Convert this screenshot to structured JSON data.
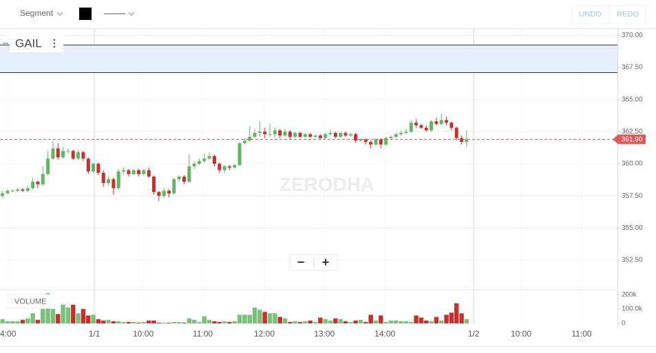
{
  "toolbar": {
    "segment": "Segment",
    "undo": "UNDO",
    "redo": "REDO"
  },
  "zoom": {
    "minus": "−",
    "plus": "+"
  },
  "watermark": "ZERODHA",
  "chart_data": {
    "type": "candlestick",
    "title": "GAIL",
    "xlim": [
      -0.5,
      121.9
    ],
    "xticks": [
      {
        "value": 1.1,
        "label": "4:00"
      },
      {
        "value": 18.2,
        "label": "1/1"
      },
      {
        "value": 27.9,
        "label": "10:00"
      },
      {
        "value": 39.7,
        "label": "11:00"
      },
      {
        "value": 51.9,
        "label": "12:00"
      },
      {
        "value": 63.8,
        "label": "13:00"
      },
      {
        "value": 75.8,
        "label": "14:00"
      },
      {
        "value": 93.4,
        "label": "1/2"
      },
      {
        "value": 102.8,
        "label": "10:00"
      },
      {
        "value": 114.8,
        "label": "11:00"
      }
    ],
    "ylim": [
      350.25,
      370.5
    ],
    "yticks": [
      {
        "value": 370,
        "label": "370.00"
      },
      {
        "value": 367.5,
        "label": "367.50"
      },
      {
        "value": 365,
        "label": "365.00"
      },
      {
        "value": 362.5,
        "label": "362.50"
      },
      {
        "value": 360,
        "label": "360.00"
      },
      {
        "value": 357.5,
        "label": "357.50"
      },
      {
        "value": 355,
        "label": "355.00"
      },
      {
        "value": 352.5,
        "label": "352.50"
      }
    ],
    "up_color": "#5fb760",
    "down_color": "#c9302c",
    "rectangle": {
      "top": 369.25,
      "bottom": 367.1,
      "color": "#e6eefc"
    },
    "last_price": {
      "value": 361.9,
      "label": "361.90",
      "color": "#e05a5a"
    },
    "open": [
      357.5,
      357.7,
      357.9,
      357.9,
      358.0,
      357.9,
      358.1,
      358.6,
      358.4,
      359.2,
      360.4,
      361.2,
      360.5,
      361.0,
      361.0,
      360.4,
      360.9,
      360.4,
      359.4,
      360.0,
      359.3,
      358.5,
      358.8,
      358.1,
      359.4,
      359.5,
      359.2,
      359.5,
      359.2,
      359.5,
      359.0,
      357.8,
      357.5,
      357.9,
      357.7,
      358.8,
      359.0,
      358.6,
      359.8,
      360.0,
      360.2,
      360.4,
      360.6,
      360.0,
      359.5,
      359.8,
      359.7,
      359.9,
      361.6,
      361.8,
      362.1,
      362.4,
      362.5,
      362.3,
      362.3,
      362.6,
      362.2,
      362.5,
      362.1,
      362.4,
      362.1,
      362.3,
      362.1,
      362.2,
      362.0,
      362.3,
      362.4,
      362.1,
      362.4,
      362.2,
      362.3,
      361.8,
      361.9,
      361.7,
      361.5,
      361.9,
      361.5,
      362.0,
      362.1,
      362.3,
      362.4,
      362.5,
      363.2,
      363.0,
      362.8,
      362.6,
      363.3,
      363.1,
      363.4,
      363.2,
      362.8,
      362.0,
      361.7
    ],
    "high": [
      357.9,
      358.0,
      358.0,
      358.1,
      358.1,
      358.3,
      358.9,
      358.7,
      359.8,
      361.0,
      361.8,
      361.6,
      361.3,
      361.2,
      361.1,
      361.1,
      361.0,
      360.5,
      360.1,
      360.1,
      359.5,
      359.0,
      358.9,
      359.6,
      359.7,
      359.6,
      359.6,
      359.6,
      359.6,
      359.7,
      359.1,
      357.9,
      358.1,
      358.0,
      358.9,
      359.1,
      359.1,
      360.7,
      360.2,
      360.4,
      360.8,
      360.9,
      360.7,
      360.1,
      359.9,
      359.9,
      360.0,
      361.7,
      362.0,
      362.9,
      362.7,
      363.3,
      362.8,
      363.1,
      362.8,
      362.7,
      362.7,
      362.6,
      362.5,
      362.5,
      362.4,
      362.4,
      362.3,
      362.3,
      362.4,
      362.7,
      362.5,
      362.5,
      362.5,
      362.4,
      362.4,
      362.0,
      362.0,
      361.8,
      362.0,
      362.0,
      362.1,
      362.2,
      362.4,
      362.6,
      362.7,
      363.4,
      363.5,
      363.1,
      363.0,
      363.4,
      363.6,
      363.9,
      363.7,
      363.3,
      362.9,
      362.2,
      362.6
    ],
    "low": [
      357.3,
      357.6,
      357.8,
      357.8,
      357.8,
      357.8,
      358.0,
      358.1,
      358.3,
      359.1,
      360.3,
      360.3,
      360.4,
      360.8,
      360.3,
      360.3,
      360.2,
      359.2,
      359.3,
      359.1,
      358.2,
      358.3,
      357.6,
      358.0,
      359.2,
      359.0,
      359.1,
      359.0,
      359.1,
      358.9,
      357.6,
      357.1,
      357.3,
      357.4,
      357.6,
      358.6,
      358.4,
      358.5,
      359.6,
      359.9,
      360.1,
      360.3,
      359.8,
      359.3,
      359.3,
      359.5,
      359.6,
      359.8,
      361.5,
      361.7,
      362.0,
      362.1,
      362.0,
      362.1,
      362.0,
      362.0,
      362.1,
      361.9,
      362.0,
      362.0,
      362.0,
      362.0,
      362.0,
      361.9,
      361.9,
      362.2,
      362.0,
      362.0,
      362.1,
      362.1,
      361.6,
      361.7,
      361.5,
      361.2,
      361.4,
      361.2,
      361.4,
      361.9,
      362.0,
      362.2,
      362.3,
      362.4,
      362.8,
      362.7,
      362.5,
      362.5,
      363.0,
      363.0,
      363.0,
      362.6,
      361.8,
      361.5,
      361.3
    ],
    "close": [
      357.7,
      357.9,
      357.9,
      358.0,
      357.9,
      358.1,
      358.6,
      358.4,
      359.2,
      360.4,
      361.2,
      360.5,
      361.0,
      361.0,
      360.4,
      360.9,
      360.4,
      359.4,
      360.0,
      359.3,
      358.5,
      358.8,
      358.1,
      359.4,
      359.5,
      359.2,
      359.5,
      359.2,
      359.5,
      359.0,
      357.8,
      357.5,
      357.9,
      357.7,
      358.8,
      359.0,
      358.6,
      359.8,
      360.0,
      360.2,
      360.4,
      360.6,
      360.0,
      359.5,
      359.8,
      359.7,
      359.9,
      361.6,
      361.8,
      362.1,
      362.4,
      362.5,
      362.3,
      362.3,
      362.6,
      362.2,
      362.5,
      362.1,
      362.4,
      362.1,
      362.3,
      362.1,
      362.2,
      362.0,
      362.3,
      362.4,
      362.1,
      362.4,
      362.2,
      362.3,
      361.8,
      361.9,
      361.7,
      361.5,
      361.9,
      361.5,
      362.0,
      362.1,
      362.3,
      362.4,
      362.5,
      363.2,
      363.0,
      362.8,
      362.6,
      363.3,
      363.1,
      363.4,
      363.2,
      362.8,
      362.0,
      361.7,
      361.9
    ],
    "volume": {
      "label": "VOLUME",
      "ylim": [
        0,
        220
      ],
      "yticks": [
        {
          "value": 200,
          "label": "200k"
        },
        {
          "value": 100,
          "label": "100.0k"
        },
        0
      ],
      "values": [
        30,
        15,
        15,
        15,
        25,
        35,
        70,
        25,
        100,
        210,
        100,
        65,
        130,
        110,
        130,
        70,
        100,
        55,
        60,
        30,
        20,
        25,
        15,
        15,
        10,
        10,
        10,
        5,
        10,
        20,
        20,
        5,
        5,
        5,
        10,
        10,
        5,
        35,
        25,
        10,
        50,
        25,
        15,
        10,
        15,
        10,
        15,
        60,
        60,
        60,
        110,
        95,
        80,
        70,
        70,
        45,
        35,
        10,
        15,
        10,
        15,
        20,
        10,
        40,
        30,
        20,
        35,
        30,
        15,
        10,
        20,
        25,
        10,
        60,
        20,
        55,
        10,
        20,
        20,
        15,
        15,
        10,
        55,
        40,
        20,
        15,
        45,
        20,
        60,
        75,
        140,
        70,
        30
      ]
    }
  }
}
